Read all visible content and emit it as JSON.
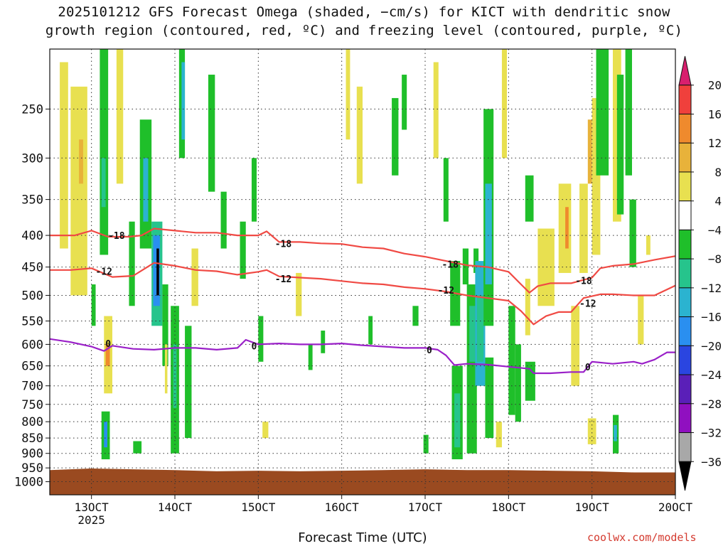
{
  "title_line1": "2025101212 GFS Forecast Omega (shaded, −cm/s) for KICT with dendritic snow",
  "title_line2": "growth region (contoured, red, ºC) and freezing level (contoured, purple, ºC)",
  "credit": "coolwx.com/models",
  "chart_data": {
    "type": "heatmap",
    "xlabel": "Forecast Time (UTC)",
    "ylabel": "",
    "y_scale": "log",
    "y_inverted": true,
    "x_domain": [
      12.5,
      20.0
    ],
    "y_domain": [
      200,
      1050
    ],
    "x_ticks": [
      {
        "value": 13,
        "label": "13OCT",
        "sub": "2025"
      },
      {
        "value": 14,
        "label": "14OCT"
      },
      {
        "value": 15,
        "label": "15OCT"
      },
      {
        "value": 16,
        "label": "16OCT"
      },
      {
        "value": 17,
        "label": "17OCT"
      },
      {
        "value": 18,
        "label": "18OCT"
      },
      {
        "value": 19,
        "label": "19OCT"
      },
      {
        "value": 20,
        "label": "20OCT"
      }
    ],
    "y_ticks": [
      250,
      300,
      350,
      400,
      450,
      500,
      550,
      600,
      650,
      700,
      750,
      800,
      850,
      900,
      950,
      1000
    ],
    "grid": true,
    "colorbar": {
      "labels": [
        "20",
        "16",
        "12",
        "8",
        "4",
        "−4",
        "−8",
        "−12",
        "−16",
        "−20",
        "−24",
        "−28",
        "−32",
        "−36"
      ],
      "colors": [
        "#d81f6e",
        "#f0403c",
        "#ef8a2d",
        "#e8b23a",
        "#e8e050",
        "#ffffff",
        "#1fbf2a",
        "#26c48c",
        "#2bb3d0",
        "#2a8ff0",
        "#2a45e0",
        "#5a1fb8",
        "#9010c0",
        "#a8a8a8",
        "#000000"
      ]
    },
    "contours": [
      {
        "label": "-18",
        "color": "#f04a44",
        "label_positions": [
          [
            13.3,
            400
          ],
          [
            15.3,
            412
          ],
          [
            17.3,
            445
          ],
          [
            18.9,
            473
          ]
        ],
        "points": [
          [
            12.5,
            400
          ],
          [
            12.8,
            400
          ],
          [
            13.0,
            393
          ],
          [
            13.2,
            402
          ],
          [
            13.45,
            402
          ],
          [
            13.6,
            400
          ],
          [
            13.75,
            390
          ],
          [
            14.0,
            393
          ],
          [
            14.25,
            396
          ],
          [
            14.5,
            396
          ],
          [
            14.75,
            400
          ],
          [
            15.0,
            400
          ],
          [
            15.1,
            394
          ],
          [
            15.25,
            410
          ],
          [
            15.5,
            410
          ],
          [
            15.75,
            412
          ],
          [
            16.0,
            413
          ],
          [
            16.25,
            418
          ],
          [
            16.5,
            420
          ],
          [
            16.75,
            428
          ],
          [
            17.0,
            433
          ],
          [
            17.25,
            440
          ],
          [
            17.5,
            447
          ],
          [
            17.75,
            450
          ],
          [
            18.0,
            458
          ],
          [
            18.15,
            480
          ],
          [
            18.25,
            495
          ],
          [
            18.35,
            483
          ],
          [
            18.5,
            478
          ],
          [
            18.75,
            478
          ],
          [
            19.0,
            468
          ],
          [
            19.1,
            452
          ],
          [
            19.25,
            448
          ],
          [
            19.5,
            445
          ],
          [
            19.75,
            438
          ],
          [
            20.0,
            432
          ]
        ]
      },
      {
        "label": "-12",
        "color": "#f04a44",
        "label_positions": [
          [
            13.15,
            457
          ],
          [
            15.3,
            470
          ],
          [
            17.25,
            490
          ],
          [
            18.95,
            515
          ]
        ],
        "points": [
          [
            12.5,
            455
          ],
          [
            12.75,
            455
          ],
          [
            13.0,
            452
          ],
          [
            13.25,
            467
          ],
          [
            13.5,
            465
          ],
          [
            13.75,
            443
          ],
          [
            14.0,
            448
          ],
          [
            14.25,
            455
          ],
          [
            14.5,
            457
          ],
          [
            14.75,
            463
          ],
          [
            15.0,
            458
          ],
          [
            15.1,
            455
          ],
          [
            15.25,
            466
          ],
          [
            15.5,
            468
          ],
          [
            15.75,
            470
          ],
          [
            16.0,
            474
          ],
          [
            16.25,
            478
          ],
          [
            16.5,
            480
          ],
          [
            16.75,
            485
          ],
          [
            17.0,
            488
          ],
          [
            17.25,
            493
          ],
          [
            17.5,
            500
          ],
          [
            17.75,
            505
          ],
          [
            18.0,
            510
          ],
          [
            18.15,
            530
          ],
          [
            18.3,
            557
          ],
          [
            18.45,
            540
          ],
          [
            18.6,
            532
          ],
          [
            18.75,
            532
          ],
          [
            18.9,
            505
          ],
          [
            19.1,
            498
          ],
          [
            19.25,
            498
          ],
          [
            19.5,
            500
          ],
          [
            19.75,
            500
          ],
          [
            20.0,
            482
          ]
        ]
      },
      {
        "label": "0",
        "color": "#9a20c8",
        "label_positions": [
          [
            13.2,
            598
          ],
          [
            14.95,
            603
          ],
          [
            17.05,
            612
          ],
          [
            18.95,
            652
          ]
        ],
        "points": [
          [
            12.5,
            588
          ],
          [
            12.75,
            595
          ],
          [
            13.0,
            605
          ],
          [
            13.15,
            615
          ],
          [
            13.25,
            603
          ],
          [
            13.5,
            610
          ],
          [
            13.75,
            612
          ],
          [
            14.0,
            608
          ],
          [
            14.25,
            608
          ],
          [
            14.5,
            612
          ],
          [
            14.75,
            608
          ],
          [
            14.85,
            590
          ],
          [
            15.0,
            600
          ],
          [
            15.25,
            598
          ],
          [
            15.5,
            600
          ],
          [
            15.75,
            600
          ],
          [
            16.0,
            598
          ],
          [
            16.25,
            602
          ],
          [
            16.5,
            605
          ],
          [
            16.75,
            608
          ],
          [
            17.0,
            608
          ],
          [
            17.15,
            612
          ],
          [
            17.25,
            625
          ],
          [
            17.35,
            648
          ],
          [
            17.5,
            645
          ],
          [
            17.75,
            647
          ],
          [
            18.0,
            652
          ],
          [
            18.25,
            657
          ],
          [
            18.3,
            668
          ],
          [
            18.5,
            668
          ],
          [
            18.75,
            665
          ],
          [
            18.9,
            665
          ],
          [
            19.0,
            640
          ],
          [
            19.25,
            645
          ],
          [
            19.5,
            640
          ],
          [
            19.6,
            645
          ],
          [
            19.75,
            635
          ],
          [
            19.9,
            618
          ],
          [
            20.0,
            618
          ]
        ]
      }
    ],
    "freezing_surface": {
      "color": "#9a4a20",
      "points": [
        [
          12.5,
          958
        ],
        [
          13.0,
          952
        ],
        [
          13.5,
          955
        ],
        [
          14.0,
          958
        ],
        [
          14.5,
          962
        ],
        [
          15.0,
          960
        ],
        [
          15.5,
          962
        ],
        [
          16.0,
          960
        ],
        [
          16.5,
          958
        ],
        [
          17.0,
          955
        ],
        [
          17.5,
          958
        ],
        [
          18.0,
          958
        ],
        [
          18.5,
          960
        ],
        [
          19.0,
          962
        ],
        [
          19.5,
          966
        ],
        [
          20.0,
          966
        ]
      ]
    },
    "shaded_cells": [
      {
        "x0": 12.62,
        "x1": 12.72,
        "p0": 210,
        "p1": 420,
        "c": "#e8e050"
      },
      {
        "x0": 12.75,
        "x1": 12.95,
        "p0": 230,
        "p1": 500,
        "c": "#e8e050"
      },
      {
        "x0": 12.85,
        "x1": 12.9,
        "p0": 280,
        "p1": 330,
        "c": "#e8b23a"
      },
      {
        "x0": 13.1,
        "x1": 13.2,
        "p0": 200,
        "p1": 430,
        "c": "#1fbf2a"
      },
      {
        "x0": 13.12,
        "x1": 13.17,
        "p0": 300,
        "p1": 360,
        "c": "#26c48c"
      },
      {
        "x0": 13.0,
        "x1": 13.05,
        "p0": 480,
        "p1": 560,
        "c": "#1fbf2a"
      },
      {
        "x0": 13.15,
        "x1": 13.25,
        "p0": 540,
        "p1": 720,
        "c": "#e8e050"
      },
      {
        "x0": 13.17,
        "x1": 13.22,
        "p0": 600,
        "p1": 650,
        "c": "#ef8a2d"
      },
      {
        "x0": 13.12,
        "x1": 13.22,
        "p0": 770,
        "p1": 920,
        "c": "#1fbf2a"
      },
      {
        "x0": 13.15,
        "x1": 13.19,
        "p0": 800,
        "p1": 880,
        "c": "#2a8ff0"
      },
      {
        "x0": 13.3,
        "x1": 13.38,
        "p0": 200,
        "p1": 330,
        "c": "#e8e050"
      },
      {
        "x0": 13.45,
        "x1": 13.52,
        "p0": 380,
        "p1": 520,
        "c": "#1fbf2a"
      },
      {
        "x0": 13.5,
        "x1": 13.6,
        "p0": 860,
        "p1": 900,
        "c": "#1fbf2a"
      },
      {
        "x0": 13.58,
        "x1": 13.72,
        "p0": 260,
        "p1": 420,
        "c": "#1fbf2a"
      },
      {
        "x0": 13.62,
        "x1": 13.68,
        "p0": 300,
        "p1": 380,
        "c": "#2bb3d0"
      },
      {
        "x0": 13.72,
        "x1": 13.85,
        "p0": 380,
        "p1": 560,
        "c": "#26c48c"
      },
      {
        "x0": 13.74,
        "x1": 13.82,
        "p0": 400,
        "p1": 520,
        "c": "#2a8ff0"
      },
      {
        "x0": 13.78,
        "x1": 13.81,
        "p0": 420,
        "p1": 500,
        "c": "#000000"
      },
      {
        "x0": 13.85,
        "x1": 13.92,
        "p0": 480,
        "p1": 650,
        "c": "#1fbf2a"
      },
      {
        "x0": 13.88,
        "x1": 13.91,
        "p0": 600,
        "p1": 720,
        "c": "#e8e050"
      },
      {
        "x0": 13.95,
        "x1": 14.05,
        "p0": 520,
        "p1": 900,
        "c": "#1fbf2a"
      },
      {
        "x0": 13.98,
        "x1": 14.02,
        "p0": 600,
        "p1": 760,
        "c": "#26c48c"
      },
      {
        "x0": 14.05,
        "x1": 14.12,
        "p0": 200,
        "p1": 300,
        "c": "#1fbf2a"
      },
      {
        "x0": 14.08,
        "x1": 14.12,
        "p0": 210,
        "p1": 280,
        "c": "#2bb3d0"
      },
      {
        "x0": 14.12,
        "x1": 14.2,
        "p0": 560,
        "p1": 850,
        "c": "#1fbf2a"
      },
      {
        "x0": 14.2,
        "x1": 14.28,
        "p0": 420,
        "p1": 520,
        "c": "#e8e050"
      },
      {
        "x0": 14.4,
        "x1": 14.48,
        "p0": 220,
        "p1": 340,
        "c": "#1fbf2a"
      },
      {
        "x0": 14.55,
        "x1": 14.62,
        "p0": 340,
        "p1": 420,
        "c": "#1fbf2a"
      },
      {
        "x0": 14.78,
        "x1": 14.85,
        "p0": 380,
        "p1": 470,
        "c": "#1fbf2a"
      },
      {
        "x0": 14.92,
        "x1": 14.98,
        "p0": 300,
        "p1": 380,
        "c": "#1fbf2a"
      },
      {
        "x0": 15.0,
        "x1": 15.06,
        "p0": 540,
        "p1": 640,
        "c": "#1fbf2a"
      },
      {
        "x0": 15.05,
        "x1": 15.12,
        "p0": 800,
        "p1": 850,
        "c": "#e8e050"
      },
      {
        "x0": 15.45,
        "x1": 15.52,
        "p0": 460,
        "p1": 540,
        "c": "#e8e050"
      },
      {
        "x0": 15.6,
        "x1": 15.65,
        "p0": 600,
        "p1": 660,
        "c": "#1fbf2a"
      },
      {
        "x0": 15.75,
        "x1": 15.8,
        "p0": 570,
        "p1": 620,
        "c": "#1fbf2a"
      },
      {
        "x0": 16.05,
        "x1": 16.1,
        "p0": 200,
        "p1": 280,
        "c": "#e8e050"
      },
      {
        "x0": 16.18,
        "x1": 16.25,
        "p0": 230,
        "p1": 330,
        "c": "#e8e050"
      },
      {
        "x0": 16.32,
        "x1": 16.37,
        "p0": 540,
        "p1": 600,
        "c": "#1fbf2a"
      },
      {
        "x0": 16.6,
        "x1": 16.68,
        "p0": 240,
        "p1": 320,
        "c": "#1fbf2a"
      },
      {
        "x0": 16.72,
        "x1": 16.78,
        "p0": 220,
        "p1": 270,
        "c": "#1fbf2a"
      },
      {
        "x0": 16.85,
        "x1": 16.92,
        "p0": 520,
        "p1": 560,
        "c": "#1fbf2a"
      },
      {
        "x0": 16.98,
        "x1": 17.04,
        "p0": 840,
        "p1": 900,
        "c": "#1fbf2a"
      },
      {
        "x0": 17.1,
        "x1": 17.16,
        "p0": 210,
        "p1": 300,
        "c": "#e8e050"
      },
      {
        "x0": 17.22,
        "x1": 17.28,
        "p0": 300,
        "p1": 380,
        "c": "#1fbf2a"
      },
      {
        "x0": 17.3,
        "x1": 17.42,
        "p0": 440,
        "p1": 560,
        "c": "#1fbf2a"
      },
      {
        "x0": 17.32,
        "x1": 17.45,
        "p0": 650,
        "p1": 920,
        "c": "#1fbf2a"
      },
      {
        "x0": 17.35,
        "x1": 17.42,
        "p0": 720,
        "p1": 880,
        "c": "#26c48c"
      },
      {
        "x0": 17.45,
        "x1": 17.52,
        "p0": 420,
        "p1": 480,
        "c": "#1fbf2a"
      },
      {
        "x0": 17.5,
        "x1": 17.62,
        "p0": 480,
        "p1": 900,
        "c": "#1fbf2a"
      },
      {
        "x0": 17.53,
        "x1": 17.6,
        "p0": 520,
        "p1": 640,
        "c": "#26c48c"
      },
      {
        "x0": 17.58,
        "x1": 17.64,
        "p0": 420,
        "p1": 460,
        "c": "#1fbf2a"
      },
      {
        "x0": 17.6,
        "x1": 17.72,
        "p0": 440,
        "p1": 700,
        "c": "#2bb3d0"
      },
      {
        "x0": 17.62,
        "x1": 17.7,
        "p0": 500,
        "p1": 640,
        "c": "#26c48c"
      },
      {
        "x0": 17.7,
        "x1": 17.82,
        "p0": 250,
        "p1": 560,
        "c": "#1fbf2a"
      },
      {
        "x0": 17.72,
        "x1": 17.8,
        "p0": 330,
        "p1": 480,
        "c": "#2bb3d0"
      },
      {
        "x0": 17.72,
        "x1": 17.82,
        "p0": 630,
        "p1": 850,
        "c": "#1fbf2a"
      },
      {
        "x0": 17.85,
        "x1": 17.92,
        "p0": 800,
        "p1": 880,
        "c": "#e8e050"
      },
      {
        "x0": 17.92,
        "x1": 17.98,
        "p0": 200,
        "p1": 300,
        "c": "#e8e050"
      },
      {
        "x0": 18.0,
        "x1": 18.08,
        "p0": 520,
        "p1": 780,
        "c": "#1fbf2a"
      },
      {
        "x0": 18.08,
        "x1": 18.15,
        "p0": 600,
        "p1": 800,
        "c": "#1fbf2a"
      },
      {
        "x0": 18.2,
        "x1": 18.26,
        "p0": 470,
        "p1": 580,
        "c": "#e8e050"
      },
      {
        "x0": 18.2,
        "x1": 18.32,
        "p0": 640,
        "p1": 740,
        "c": "#1fbf2a"
      },
      {
        "x0": 18.2,
        "x1": 18.3,
        "p0": 320,
        "p1": 380,
        "c": "#1fbf2a"
      },
      {
        "x0": 18.35,
        "x1": 18.55,
        "p0": 390,
        "p1": 520,
        "c": "#e8e050"
      },
      {
        "x0": 18.6,
        "x1": 18.75,
        "p0": 330,
        "p1": 460,
        "c": "#e8e050"
      },
      {
        "x0": 18.68,
        "x1": 18.72,
        "p0": 360,
        "p1": 420,
        "c": "#ef8a2d"
      },
      {
        "x0": 18.75,
        "x1": 18.85,
        "p0": 520,
        "p1": 700,
        "c": "#e8e050"
      },
      {
        "x0": 18.85,
        "x1": 18.95,
        "p0": 330,
        "p1": 460,
        "c": "#e8e050"
      },
      {
        "x0": 18.95,
        "x1": 19.0,
        "p0": 260,
        "p1": 330,
        "c": "#e8b23a"
      },
      {
        "x0": 19.0,
        "x1": 19.1,
        "p0": 240,
        "p1": 430,
        "c": "#e8e050"
      },
      {
        "x0": 19.05,
        "x1": 19.2,
        "p0": 200,
        "p1": 320,
        "c": "#1fbf2a"
      },
      {
        "x0": 19.25,
        "x1": 19.35,
        "p0": 200,
        "p1": 380,
        "c": "#e8e050"
      },
      {
        "x0": 19.3,
        "x1": 19.38,
        "p0": 220,
        "p1": 370,
        "c": "#1fbf2a"
      },
      {
        "x0": 19.4,
        "x1": 19.48,
        "p0": 200,
        "p1": 320,
        "c": "#1fbf2a"
      },
      {
        "x0": 19.45,
        "x1": 19.53,
        "p0": 350,
        "p1": 450,
        "c": "#1fbf2a"
      },
      {
        "x0": 19.55,
        "x1": 19.62,
        "p0": 500,
        "p1": 600,
        "c": "#e8e050"
      },
      {
        "x0": 19.65,
        "x1": 19.7,
        "p0": 400,
        "p1": 430,
        "c": "#e8e050"
      },
      {
        "x0": 19.25,
        "x1": 19.32,
        "p0": 780,
        "p1": 900,
        "c": "#1fbf2a"
      },
      {
        "x0": 19.26,
        "x1": 19.3,
        "p0": 810,
        "p1": 860,
        "c": "#2bb3d0"
      },
      {
        "x0": 18.95,
        "x1": 19.05,
        "p0": 790,
        "p1": 870,
        "c": "#e8e050"
      }
    ]
  }
}
